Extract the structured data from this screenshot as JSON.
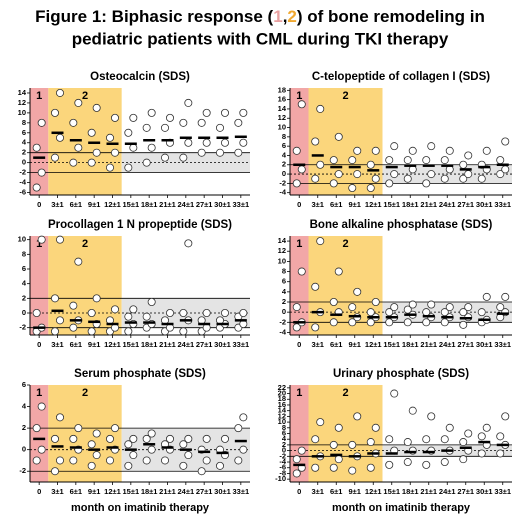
{
  "title_lines": [
    [
      "Figure 1: Biphasic response (",
      "1",
      ",",
      "2",
      ") of bone remodeling in"
    ],
    [
      "pediatric patients with CML during TKI therapy"
    ]
  ],
  "title_colors": [
    "#000000",
    "#e8a0a0",
    "#000000",
    "#f0a830",
    "#000000"
  ],
  "chart_data": [
    {
      "type": "dotplot",
      "title": "Osteocalcin (SDS)",
      "phase_labels": [
        "1",
        "2"
      ],
      "categories": [
        "0",
        "3±1",
        "6±1",
        "9±1",
        "12±1",
        "15±1",
        "18±1",
        "21±1",
        "24±1",
        "27±1",
        "30±1",
        "33±1"
      ],
      "values": [
        1,
        6,
        4.5,
        4,
        3.8,
        3.8,
        4.5,
        4.5,
        5,
        5,
        5,
        5.2
      ],
      "points": [
        [
          -5,
          -2,
          3,
          8
        ],
        [
          1,
          5,
          10,
          14
        ],
        [
          0,
          3,
          8,
          12
        ],
        [
          0,
          2,
          6,
          11
        ],
        [
          -1,
          2,
          5,
          9
        ],
        [
          -1,
          3,
          6,
          9
        ],
        [
          0,
          3,
          7,
          10
        ],
        [
          1,
          4,
          7,
          9
        ],
        [
          1,
          4,
          8,
          12
        ],
        [
          2,
          4,
          8,
          10
        ],
        [
          2,
          4,
          7,
          10
        ],
        [
          2,
          4,
          8,
          10
        ]
      ],
      "reference_band": [
        -2,
        2
      ],
      "ylim": [
        -6.5,
        15
      ],
      "yticks": [
        -6,
        -4,
        -2,
        0,
        2,
        4,
        6,
        8,
        10,
        12,
        14
      ]
    },
    {
      "type": "dotplot",
      "title": "C-telopeptide of collagen I  (SDS)",
      "phase_labels": [
        "1",
        "2"
      ],
      "categories": [
        "0",
        "3±1",
        "6±1",
        "9±1",
        "12±1",
        "15±1",
        "18±1",
        "21±1",
        "24±1",
        "27±1",
        "30±1",
        "33±1"
      ],
      "values": [
        2,
        4,
        1.5,
        1.5,
        0.8,
        1.5,
        1.8,
        1.8,
        1.8,
        1,
        1.5,
        2
      ],
      "points": [
        [
          -2,
          1,
          5,
          15
        ],
        [
          -1,
          2,
          7,
          14
        ],
        [
          -2,
          0,
          3,
          8
        ],
        [
          -3,
          0,
          3,
          5
        ],
        [
          -3,
          -1,
          2,
          5
        ],
        [
          -2,
          0,
          3,
          6
        ],
        [
          -1,
          1,
          3,
          5
        ],
        [
          -2,
          0,
          3,
          6
        ],
        [
          -1,
          1,
          3,
          5
        ],
        [
          -1,
          0,
          2,
          4
        ],
        [
          -1,
          1,
          2,
          5
        ],
        [
          0,
          1,
          3,
          7
        ]
      ],
      "reference_band": [
        -2,
        2
      ],
      "ylim": [
        -4.5,
        18.5
      ],
      "yticks": [
        -4,
        -2,
        0,
        2,
        4,
        6,
        8,
        10,
        12,
        14,
        16,
        18
      ]
    },
    {
      "type": "dotplot",
      "title": "Procollagen 1 N propeptide  (SDS)",
      "phase_labels": [
        "1",
        "2"
      ],
      "categories": [
        "0",
        "3±1",
        "6±1",
        "9±1",
        "12±1",
        "15±1",
        "18±1",
        "21±1",
        "24±1",
        "27±1",
        "30±1",
        "33±1"
      ],
      "values": [
        -2,
        0.3,
        -1,
        -1.2,
        -1.5,
        -1.3,
        -1.3,
        -1.5,
        -1,
        -1.5,
        -1.5,
        -1
      ],
      "points": [
        [
          -2.5,
          -2,
          0,
          10
        ],
        [
          -2.5,
          -1,
          2,
          10
        ],
        [
          -2,
          -1,
          1,
          7
        ],
        [
          -2.5,
          -1.5,
          0,
          2
        ],
        [
          -2.5,
          -2,
          -1,
          0.5
        ],
        [
          -2.5,
          -1.5,
          -0.5,
          0.5
        ],
        [
          -2,
          -1.5,
          -0.5,
          1.5
        ],
        [
          -2.5,
          -2,
          -1,
          0
        ],
        [
          -2.5,
          -1,
          0,
          9.5
        ],
        [
          -2.5,
          -2,
          -1,
          0
        ],
        [
          -2,
          -1.5,
          -1,
          0
        ],
        [
          -2,
          -1.5,
          -0.5,
          0
        ]
      ],
      "reference_band": [
        -2,
        2
      ],
      "ylim": [
        -3,
        10.5
      ],
      "yticks": [
        -2,
        0,
        2,
        4,
        6,
        8,
        10
      ]
    },
    {
      "type": "dotplot",
      "title": "Bone alkaline phosphatase (SDS)",
      "phase_labels": [
        "1",
        "2"
      ],
      "categories": [
        "0",
        "3±1",
        "6±1",
        "9±1",
        "12±1",
        "15±1",
        "18±1",
        "21±1",
        "24±1",
        "27±1",
        "30±1",
        "33±1"
      ],
      "values": [
        -2,
        0,
        -0.5,
        -0.8,
        -1,
        -1,
        -0.5,
        -0.8,
        -1,
        -1.2,
        -1.5,
        -0.3
      ],
      "points": [
        [
          -3,
          -2,
          1,
          8
        ],
        [
          -3,
          0,
          5,
          14
        ],
        [
          -2,
          0,
          2,
          8
        ],
        [
          -2,
          -1,
          1,
          4
        ],
        [
          -2,
          -1,
          0,
          2
        ],
        [
          -2,
          -1,
          0,
          1
        ],
        [
          -2,
          -0.5,
          0.5,
          1.5
        ],
        [
          -2,
          -1,
          0,
          1.5
        ],
        [
          -2,
          -1,
          0,
          1
        ],
        [
          -2.5,
          -1,
          0,
          1
        ],
        [
          -2,
          -1.5,
          0,
          3
        ],
        [
          -1,
          0,
          1,
          3
        ]
      ],
      "reference_band": [
        -2,
        2
      ],
      "ylim": [
        -4.5,
        15
      ],
      "yticks": [
        -4,
        -2,
        0,
        2,
        4,
        6,
        8,
        10,
        12,
        14
      ]
    },
    {
      "type": "dotplot",
      "title": "Serum phosphate (SDS)",
      "phase_labels": [
        "1",
        "2"
      ],
      "xlabel": "month on imatinib therapy",
      "categories": [
        "0",
        "3±1",
        "6±1",
        "9±1",
        "12±1",
        "15±1",
        "18±1",
        "21±1",
        "24±1",
        "27±1",
        "30±1",
        "33±1"
      ],
      "values": [
        1,
        0.3,
        0.2,
        0,
        0.2,
        0,
        0.5,
        0.2,
        0,
        -0.2,
        -0.3,
        0.8
      ],
      "points": [
        [
          -1,
          0,
          2,
          4
        ],
        [
          -2,
          -1,
          1,
          3
        ],
        [
          -1,
          0,
          1,
          2
        ],
        [
          -1.5,
          -0.5,
          0.5,
          1.5
        ],
        [
          -1,
          0,
          1,
          2
        ],
        [
          -1.5,
          -0.5,
          0.5,
          1
        ],
        [
          -1,
          0,
          1,
          1.5
        ],
        [
          -1,
          0,
          0.5,
          1
        ],
        [
          -1.5,
          -0.5,
          0.5,
          1
        ],
        [
          -2,
          -1,
          0,
          1
        ],
        [
          -1.5,
          -0.5,
          0,
          1
        ],
        [
          -1,
          0,
          2,
          3
        ]
      ],
      "reference_band": [
        -2,
        2
      ],
      "ylim": [
        -3,
        6
      ],
      "yticks": [
        -2,
        0,
        2,
        4,
        6
      ]
    },
    {
      "type": "dotplot",
      "title": "Urinary phosphate (SDS)",
      "phase_labels": [
        "1",
        "2"
      ],
      "xlabel": "month on imatinib therapy",
      "categories": [
        "0",
        "3±1",
        "6±1",
        "9±1",
        "12±1",
        "15±1",
        "18±1",
        "21±1",
        "24±1",
        "27±1",
        "30±1",
        "33±1"
      ],
      "values": [
        -5,
        -2,
        -1.5,
        -2,
        -1,
        -1,
        -0.5,
        -0.5,
        0,
        1,
        3,
        2
      ],
      "points": [
        [
          -8,
          -6,
          -3,
          0
        ],
        [
          -6,
          -2,
          4,
          10
        ],
        [
          -6,
          -3,
          2,
          8
        ],
        [
          -7,
          -2,
          2,
          12
        ],
        [
          -6,
          -1,
          3,
          8
        ],
        [
          -5,
          0,
          4,
          20
        ],
        [
          -4,
          0,
          3,
          14
        ],
        [
          -5,
          0,
          4,
          12
        ],
        [
          -4,
          0,
          4,
          8
        ],
        [
          -3,
          0,
          3,
          6
        ],
        [
          -1,
          2,
          5,
          8
        ],
        [
          -1,
          2,
          5,
          12
        ]
      ],
      "reference_band": [
        -2,
        2
      ],
      "ylim": [
        -11,
        23
      ],
      "yticks": [
        -10,
        -8,
        -6,
        -4,
        -2,
        0,
        2,
        4,
        6,
        8,
        10,
        12,
        14,
        16,
        18,
        20,
        22
      ]
    }
  ]
}
